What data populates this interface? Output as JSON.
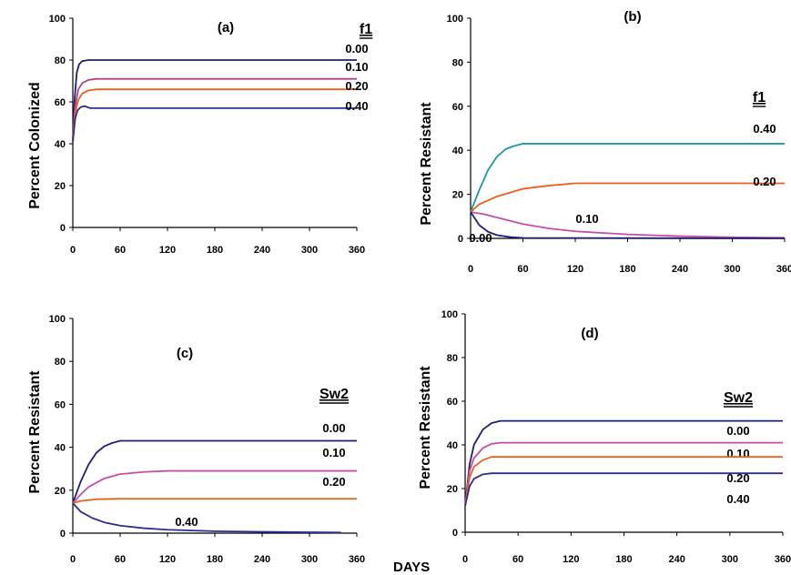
{
  "figure": {
    "xlabel": "DAYS"
  },
  "chart_data": [
    {
      "type": "line",
      "panel": "(a)",
      "ylabel": "Percent Colonized",
      "legend_title": "f1",
      "xlim": [
        0,
        360
      ],
      "ylim": [
        0,
        100
      ],
      "xticks": [
        0,
        60,
        120,
        180,
        240,
        300,
        360
      ],
      "yticks": [
        0,
        20,
        40,
        60,
        80,
        100
      ],
      "series": [
        {
          "name": "0.00",
          "color": "#1f1f7a",
          "x": [
            0,
            2,
            5,
            8,
            12,
            20,
            360
          ],
          "y": [
            41,
            60,
            74,
            78,
            79.5,
            80,
            80
          ]
        },
        {
          "name": "0.10",
          "color": "#b0418c",
          "x": [
            0,
            3,
            7,
            12,
            20,
            30,
            360
          ],
          "y": [
            41,
            58,
            66,
            69,
            70.5,
            71,
            71
          ]
        },
        {
          "name": "0.20",
          "color": "#e8621c",
          "x": [
            0,
            3,
            7,
            12,
            20,
            30,
            360
          ],
          "y": [
            41,
            55,
            61,
            64,
            65.5,
            66,
            66
          ]
        },
        {
          "name": "0.40",
          "color": "#2e2e8c",
          "x": [
            0,
            3,
            6,
            10,
            15,
            22,
            360
          ],
          "y": [
            41,
            52,
            56,
            57.5,
            58,
            57,
            57
          ]
        }
      ]
    },
    {
      "type": "line",
      "panel": "(b)",
      "ylabel": "Percent Resistant",
      "legend_title": "f1",
      "xlim": [
        0,
        360
      ],
      "ylim": [
        0,
        100
      ],
      "xticks": [
        0,
        60,
        120,
        180,
        240,
        300,
        360
      ],
      "yticks": [
        0,
        20,
        40,
        60,
        80,
        100
      ],
      "series": [
        {
          "name": "0.40",
          "color": "#1a9aa0",
          "x": [
            0,
            10,
            20,
            30,
            40,
            50,
            60,
            360
          ],
          "y": [
            12,
            22,
            31,
            37,
            40.5,
            42,
            43,
            43
          ]
        },
        {
          "name": "0.20",
          "color": "#e8621c",
          "x": [
            0,
            10,
            30,
            60,
            90,
            120,
            360
          ],
          "y": [
            12,
            15.5,
            19,
            22.5,
            24,
            25,
            25
          ]
        },
        {
          "name": "0.10",
          "color": "#c44fa8",
          "x": [
            0,
            15,
            30,
            60,
            90,
            120,
            180,
            240,
            300,
            360
          ],
          "y": [
            12,
            11,
            9.5,
            6.5,
            4.5,
            3.2,
            1.8,
            1,
            0.5,
            0.3
          ]
        },
        {
          "name": "0.00",
          "color": "#1f1f7a",
          "x": [
            0,
            5,
            10,
            20,
            30,
            45,
            60,
            360
          ],
          "y": [
            12,
            9,
            6,
            3,
            1.5,
            0.6,
            0.2,
            0
          ]
        }
      ]
    },
    {
      "type": "line",
      "panel": "(c)",
      "ylabel": "Percent Resistant",
      "legend_title": "Sw2",
      "xlim": [
        0,
        360
      ],
      "ylim": [
        0,
        100
      ],
      "xticks": [
        0,
        60,
        120,
        180,
        240,
        300,
        360
      ],
      "yticks": [
        0,
        20,
        40,
        60,
        80,
        100
      ],
      "series": [
        {
          "name": "0.00",
          "color": "#1f1f7a",
          "x": [
            0,
            10,
            20,
            30,
            40,
            50,
            60,
            360
          ],
          "y": [
            14,
            24,
            32,
            37.5,
            40.5,
            42,
            43,
            43
          ]
        },
        {
          "name": "0.10",
          "color": "#c44fa8",
          "x": [
            0,
            10,
            20,
            40,
            60,
            90,
            120,
            360
          ],
          "y": [
            14,
            18,
            21.5,
            25.5,
            27.5,
            28.5,
            29,
            29
          ]
        },
        {
          "name": "0.20",
          "color": "#e8621c",
          "x": [
            0,
            10,
            30,
            60,
            360
          ],
          "y": [
            14,
            15,
            15.8,
            16,
            16
          ]
        },
        {
          "name": "0.40",
          "color": "#2e2e8c",
          "x": [
            0,
            10,
            25,
            40,
            60,
            90,
            120,
            180,
            240,
            300,
            340
          ],
          "y": [
            14,
            10,
            7,
            5,
            3.5,
            2.3,
            1.6,
            0.9,
            0.6,
            0.4,
            0.3
          ]
        }
      ]
    },
    {
      "type": "line",
      "panel": "(d)",
      "ylabel": "Percent Resistant",
      "legend_title": "Sw2",
      "xlim": [
        0,
        360
      ],
      "ylim": [
        0,
        100
      ],
      "xticks": [
        0,
        60,
        120,
        180,
        240,
        300,
        360
      ],
      "yticks": [
        0,
        20,
        40,
        60,
        80,
        100
      ],
      "series": [
        {
          "name": "0.00",
          "color": "#1f1f7a",
          "x": [
            0,
            5,
            10,
            20,
            30,
            40,
            360
          ],
          "y": [
            12,
            31,
            40,
            47,
            50,
            51,
            51
          ]
        },
        {
          "name": "0.10",
          "color": "#c44fa8",
          "x": [
            0,
            5,
            10,
            20,
            30,
            40,
            360
          ],
          "y": [
            12,
            28,
            34,
            38.5,
            40.5,
            41,
            41
          ]
        },
        {
          "name": "0.20",
          "color": "#e8621c",
          "x": [
            0,
            5,
            10,
            20,
            30,
            360
          ],
          "y": [
            12,
            25,
            30,
            33,
            34.5,
            34.5
          ]
        },
        {
          "name": "0.40",
          "color": "#2e2e8c",
          "x": [
            0,
            5,
            10,
            20,
            30,
            360
          ],
          "y": [
            12,
            21,
            24.5,
            26.5,
            27,
            27
          ]
        }
      ]
    }
  ]
}
